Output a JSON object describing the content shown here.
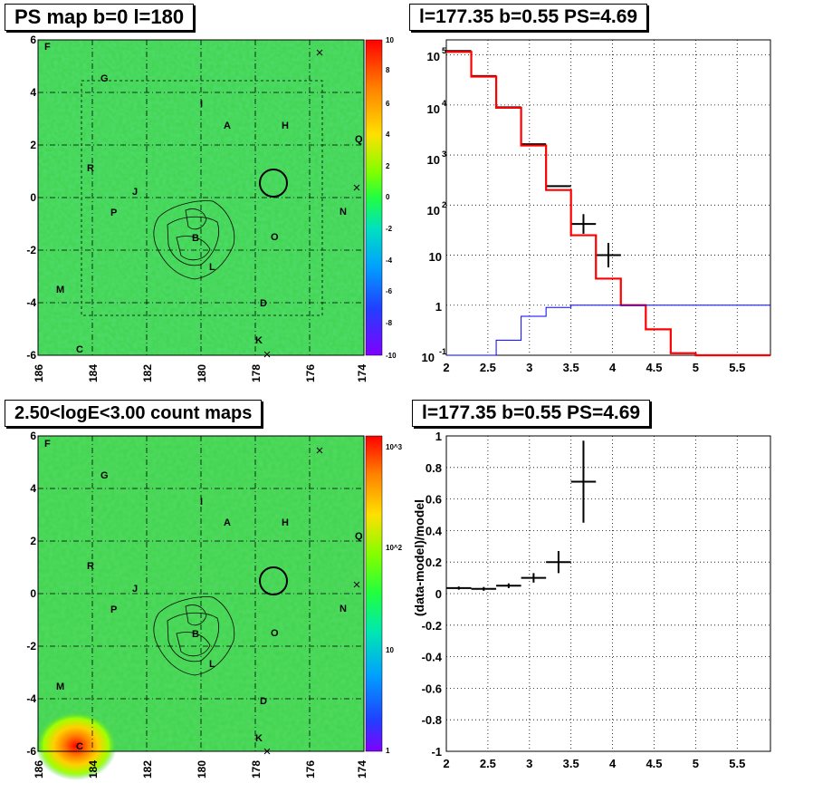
{
  "titles": {
    "map_top": "PS map b=0 l=180",
    "spec_top": "l=177.35 b=0.55 PS=4.69",
    "map_bottom": "2.50<logE<3.00 count maps",
    "resid_bottom": "l=177.35 b=0.55 PS=4.69"
  },
  "maps": {
    "x_ticks": [
      "186",
      "184",
      "182",
      "180",
      "178",
      "176",
      "174"
    ],
    "y_ticks": [
      "6",
      "4",
      "2",
      "0",
      "-2",
      "-4",
      "-6"
    ],
    "source_labels": [
      "F",
      "G",
      "I",
      "A",
      "H",
      "Q",
      "R",
      "J",
      "P",
      "N",
      "B",
      "O",
      "L",
      "M",
      "D",
      "K",
      "C"
    ],
    "colorbar_ps": [
      "10",
      "8",
      "6",
      "4",
      "2",
      "0",
      "-2",
      "-4",
      "-6",
      "-8",
      "-10"
    ],
    "colorbar_counts": [
      "10^3",
      "10^2",
      "10",
      "1"
    ],
    "colors": {
      "map_green": "#3fd24a",
      "cyan": "#22e6b0"
    }
  },
  "chart_data": [
    {
      "type": "line",
      "title": "l=177.35 b=0.55 PS=4.69",
      "xlim": [
        2,
        5.9
      ],
      "ylim": [
        0.1,
        200000
      ],
      "yscale": "log",
      "x_ticks": [
        "2",
        "2.5",
        "3",
        "3.5",
        "4",
        "4.5",
        "5",
        "5.5"
      ],
      "y_ticks": [
        "10^-1",
        "1",
        "10",
        "10^2",
        "10^3",
        "10^4",
        "10^5"
      ],
      "bin_edges": [
        2.0,
        2.3,
        2.6,
        2.9,
        3.2,
        3.5,
        3.8,
        4.1,
        4.4,
        4.7,
        5.0,
        5.3,
        5.6,
        5.9
      ],
      "series": [
        {
          "color": "#000000",
          "style": "points",
          "values": [
            120000,
            38000,
            9000,
            1650,
            240,
            42,
            10
          ]
        },
        {
          "color": "#ff0000",
          "style": "step",
          "values": [
            115000,
            37000,
            8800,
            1550,
            200,
            25,
            3.4,
            1.0,
            0.33,
            0.11,
            0.1,
            0.1,
            0.1
          ]
        },
        {
          "color": "#0000ff",
          "style": "step",
          "values": [
            0.1,
            0.1,
            0.2,
            0.6,
            0.9,
            1.0,
            1.0,
            1.0,
            1.0,
            1.0,
            1.0,
            1.0,
            1.0
          ]
        }
      ]
    },
    {
      "type": "scatter",
      "title": "l=177.35 b=0.55 PS=4.69",
      "ylabel": "(data-model)/model",
      "xlim": [
        2,
        5.9
      ],
      "ylim": [
        -1,
        1
      ],
      "x_ticks": [
        "2",
        "2.5",
        "3",
        "3.5",
        "4",
        "4.5",
        "5",
        "5.5"
      ],
      "y_ticks": [
        "1",
        "0.8",
        "0.6",
        "0.4",
        "0.2",
        "0",
        "-0.2",
        "-0.4",
        "-0.6",
        "-0.8",
        "-1"
      ],
      "points": [
        {
          "x": 2.15,
          "y": 0.035,
          "yerr": 0.01
        },
        {
          "x": 2.45,
          "y": 0.03,
          "yerr": 0.012
        },
        {
          "x": 2.75,
          "y": 0.05,
          "yerr": 0.015
        },
        {
          "x": 3.05,
          "y": 0.1,
          "yerr": 0.03
        },
        {
          "x": 3.35,
          "y": 0.2,
          "yerr": 0.07
        },
        {
          "x": 3.65,
          "y": 0.71,
          "yerr": 0.26
        }
      ]
    }
  ]
}
